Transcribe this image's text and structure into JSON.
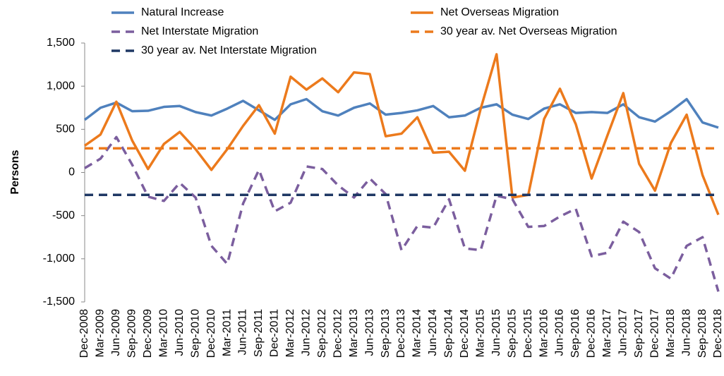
{
  "chart_data": {
    "type": "line",
    "y_label": "Persons",
    "categories": [
      "Dec-2008",
      "Mar-2009",
      "Jun-2009",
      "Sep-2009",
      "Dec-2009",
      "Mar-2010",
      "Jun-2010",
      "Sep-2010",
      "Dec-2010",
      "Mar-2011",
      "Jun-2011",
      "Sep-2011",
      "Dec-2011",
      "Mar-2012",
      "Jun-2012",
      "Sep-2012",
      "Dec-2012",
      "Mar-2013",
      "Jun-2013",
      "Sep-2013",
      "Dec-2013",
      "Mar-2014",
      "Jun-2014",
      "Sep-2014",
      "Dec-2014",
      "Mar-2015",
      "Jun-2015",
      "Sep-2015",
      "Dec-2015",
      "Mar-2016",
      "Jun-2016",
      "Sep-2016",
      "Dec-2016",
      "Mar-2017",
      "Jun-2017",
      "Sep-2017",
      "Dec-2017",
      "Mar-2018",
      "Jun-2018",
      "Sep-2018",
      "Dec-2018"
    ],
    "series": [
      {
        "name": "Natural Increase",
        "color": "#4f81bd",
        "dash": false,
        "values": [
          610,
          750,
          810,
          710,
          715,
          760,
          770,
          700,
          660,
          740,
          830,
          720,
          610,
          790,
          850,
          710,
          660,
          750,
          800,
          670,
          690,
          720,
          770,
          640,
          660,
          750,
          790,
          670,
          620,
          740,
          790,
          690,
          700,
          690,
          790,
          640,
          590,
          710,
          850,
          580,
          520
        ]
      },
      {
        "name": "Net Overseas Migration",
        "color": "#ec7a1c",
        "dash": false,
        "values": [
          310,
          440,
          820,
          370,
          40,
          330,
          470,
          270,
          30,
          270,
          540,
          780,
          450,
          1110,
          960,
          1090,
          930,
          1160,
          1140,
          420,
          450,
          640,
          230,
          240,
          20,
          740,
          1370,
          -290,
          -260,
          620,
          970,
          560,
          -70,
          430,
          920,
          100,
          -210,
          340,
          670,
          -30,
          -490
        ]
      },
      {
        "name": "Net Interstate Migration",
        "color": "#7b5e9e",
        "dash": true,
        "values": [
          50,
          160,
          410,
          90,
          -280,
          -330,
          -120,
          -290,
          -850,
          -1060,
          -360,
          30,
          -450,
          -350,
          70,
          40,
          -150,
          -290,
          -70,
          -250,
          -900,
          -620,
          -640,
          -310,
          -880,
          -900,
          -270,
          -310,
          -630,
          -620,
          -510,
          -420,
          -970,
          -930,
          -570,
          -690,
          -1110,
          -1230,
          -850,
          -750,
          -1380
        ]
      },
      {
        "name": "30 year av. Net Overseas Migration",
        "color": "#ec7a1c",
        "dash": true,
        "value": 280
      },
      {
        "name": "30 year av. Net Interstate Migration",
        "color": "#1f3864",
        "dash": true,
        "value": -260
      }
    ],
    "ylim": [
      -1500,
      1500
    ],
    "yticks": [
      {
        "value": -1500,
        "label": "-1,500"
      },
      {
        "value": -1000,
        "label": "-1,000"
      },
      -500,
      0,
      500,
      {
        "value": 1000,
        "label": "1,000"
      },
      {
        "value": 1500,
        "label": "1,500"
      }
    ],
    "grid": false
  }
}
